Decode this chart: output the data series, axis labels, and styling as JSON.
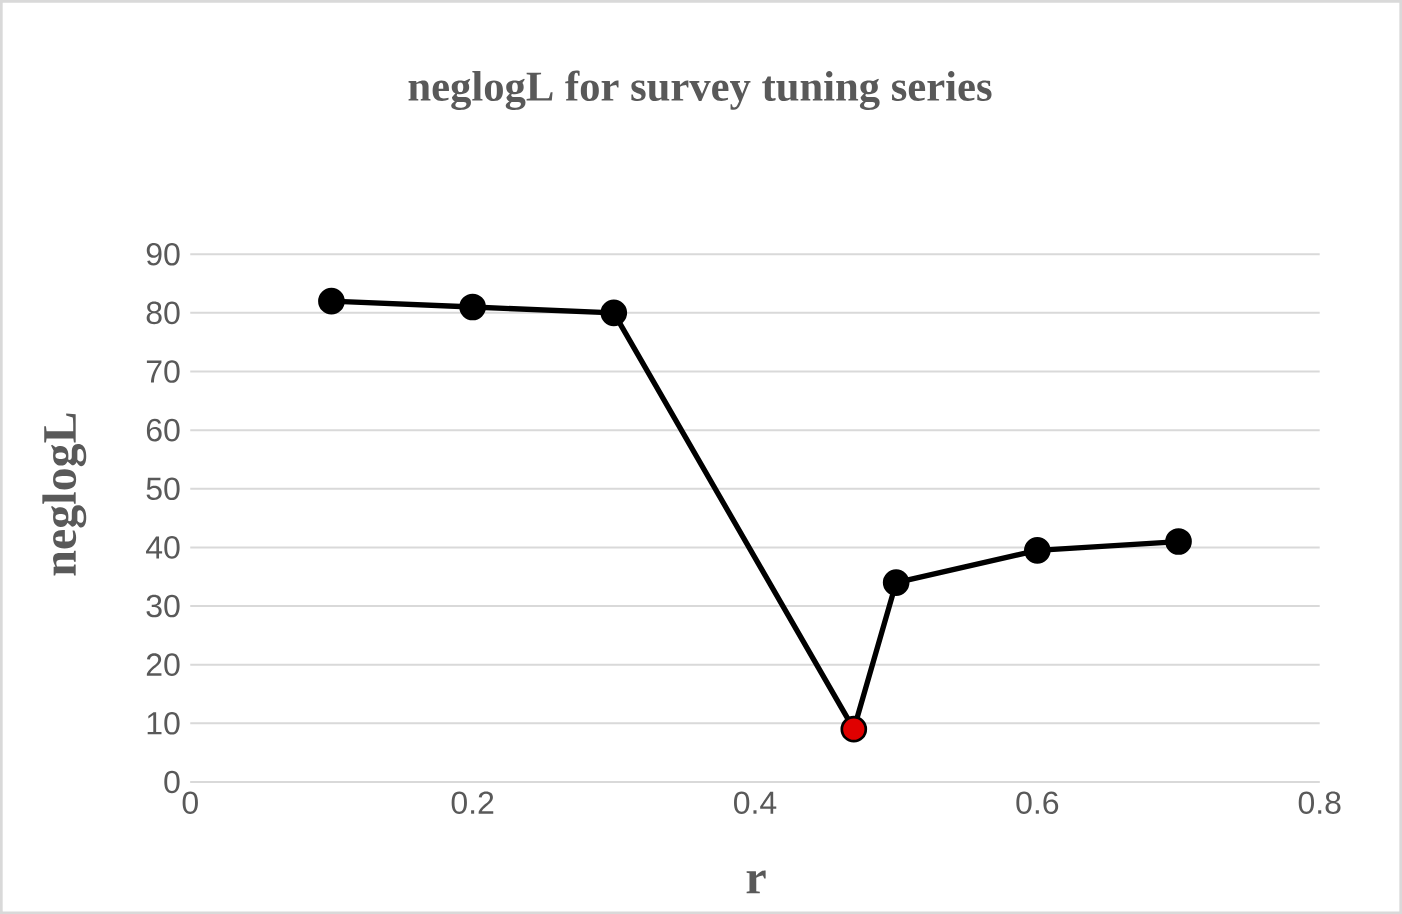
{
  "chart_data": {
    "type": "line",
    "title": "neglogL for survey tuning series",
    "xlabel": "r",
    "ylabel": "neglogL",
    "x": [
      0.1,
      0.2,
      0.3,
      0.47,
      0.5,
      0.6,
      0.7
    ],
    "series": [
      {
        "color": "#000000",
        "colors": [
          "#000000",
          "#000000",
          "#000000",
          "#e00000",
          "#000000",
          "#000000",
          "#000000"
        ],
        "values": [
          82,
          81,
          80,
          9,
          34,
          39.5,
          41
        ]
      }
    ],
    "xlim": [
      0,
      0.8
    ],
    "ylim": [
      0,
      90
    ],
    "xticks": [
      0,
      0.2,
      0.4,
      0.6,
      0.8
    ],
    "yticks": [
      0,
      10,
      20,
      30,
      40,
      50,
      60,
      70,
      80,
      90
    ],
    "grid": "y",
    "marker": "circle",
    "line_style": "solid"
  }
}
